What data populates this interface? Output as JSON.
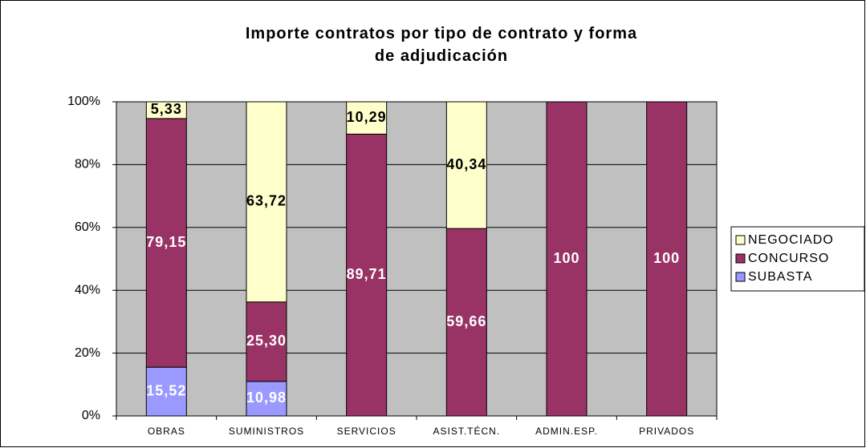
{
  "chart_data": {
    "type": "stacked_bar_100",
    "title": "Importe contratos por tipo de contrato y forma de adjudicación",
    "categories": [
      "OBRAS",
      "SUMINISTROS",
      "SERVICIOS",
      "ASIST.TÉCN.",
      "ADMIN.ESP.",
      "PRIVADOS"
    ],
    "series": [
      {
        "name": "SUBASTA",
        "color": "#9999ff",
        "label_color": "#ffffff",
        "values": [
          15.52,
          10.98,
          null,
          null,
          null,
          null
        ],
        "value_labels": [
          "15,52",
          "10,98",
          null,
          null,
          null,
          null
        ]
      },
      {
        "name": "CONCURSO",
        "color": "#993366",
        "label_color": "#ffffff",
        "values": [
          79.15,
          25.3,
          89.71,
          59.66,
          100,
          100
        ],
        "value_labels": [
          "79,15",
          "25,30",
          "89,71",
          "59,66",
          "100",
          "100"
        ]
      },
      {
        "name": "NEGOCIADO",
        "color": "#ffffcc",
        "label_color": "#000000",
        "values": [
          5.33,
          63.72,
          10.29,
          40.34,
          null,
          null
        ],
        "value_labels": [
          "5,33",
          "63,72",
          "10,29",
          "40,34",
          null,
          null
        ]
      }
    ],
    "ylim": [
      0,
      100
    ],
    "yticks": [
      {
        "value": 0,
        "label": "0%"
      },
      {
        "value": 20,
        "label": "20%"
      },
      {
        "value": 40,
        "label": "40%"
      },
      {
        "value": 60,
        "label": "60%"
      },
      {
        "value": 80,
        "label": "80%"
      },
      {
        "value": 100,
        "label": "100%"
      }
    ],
    "grid": true,
    "legend": "right"
  }
}
